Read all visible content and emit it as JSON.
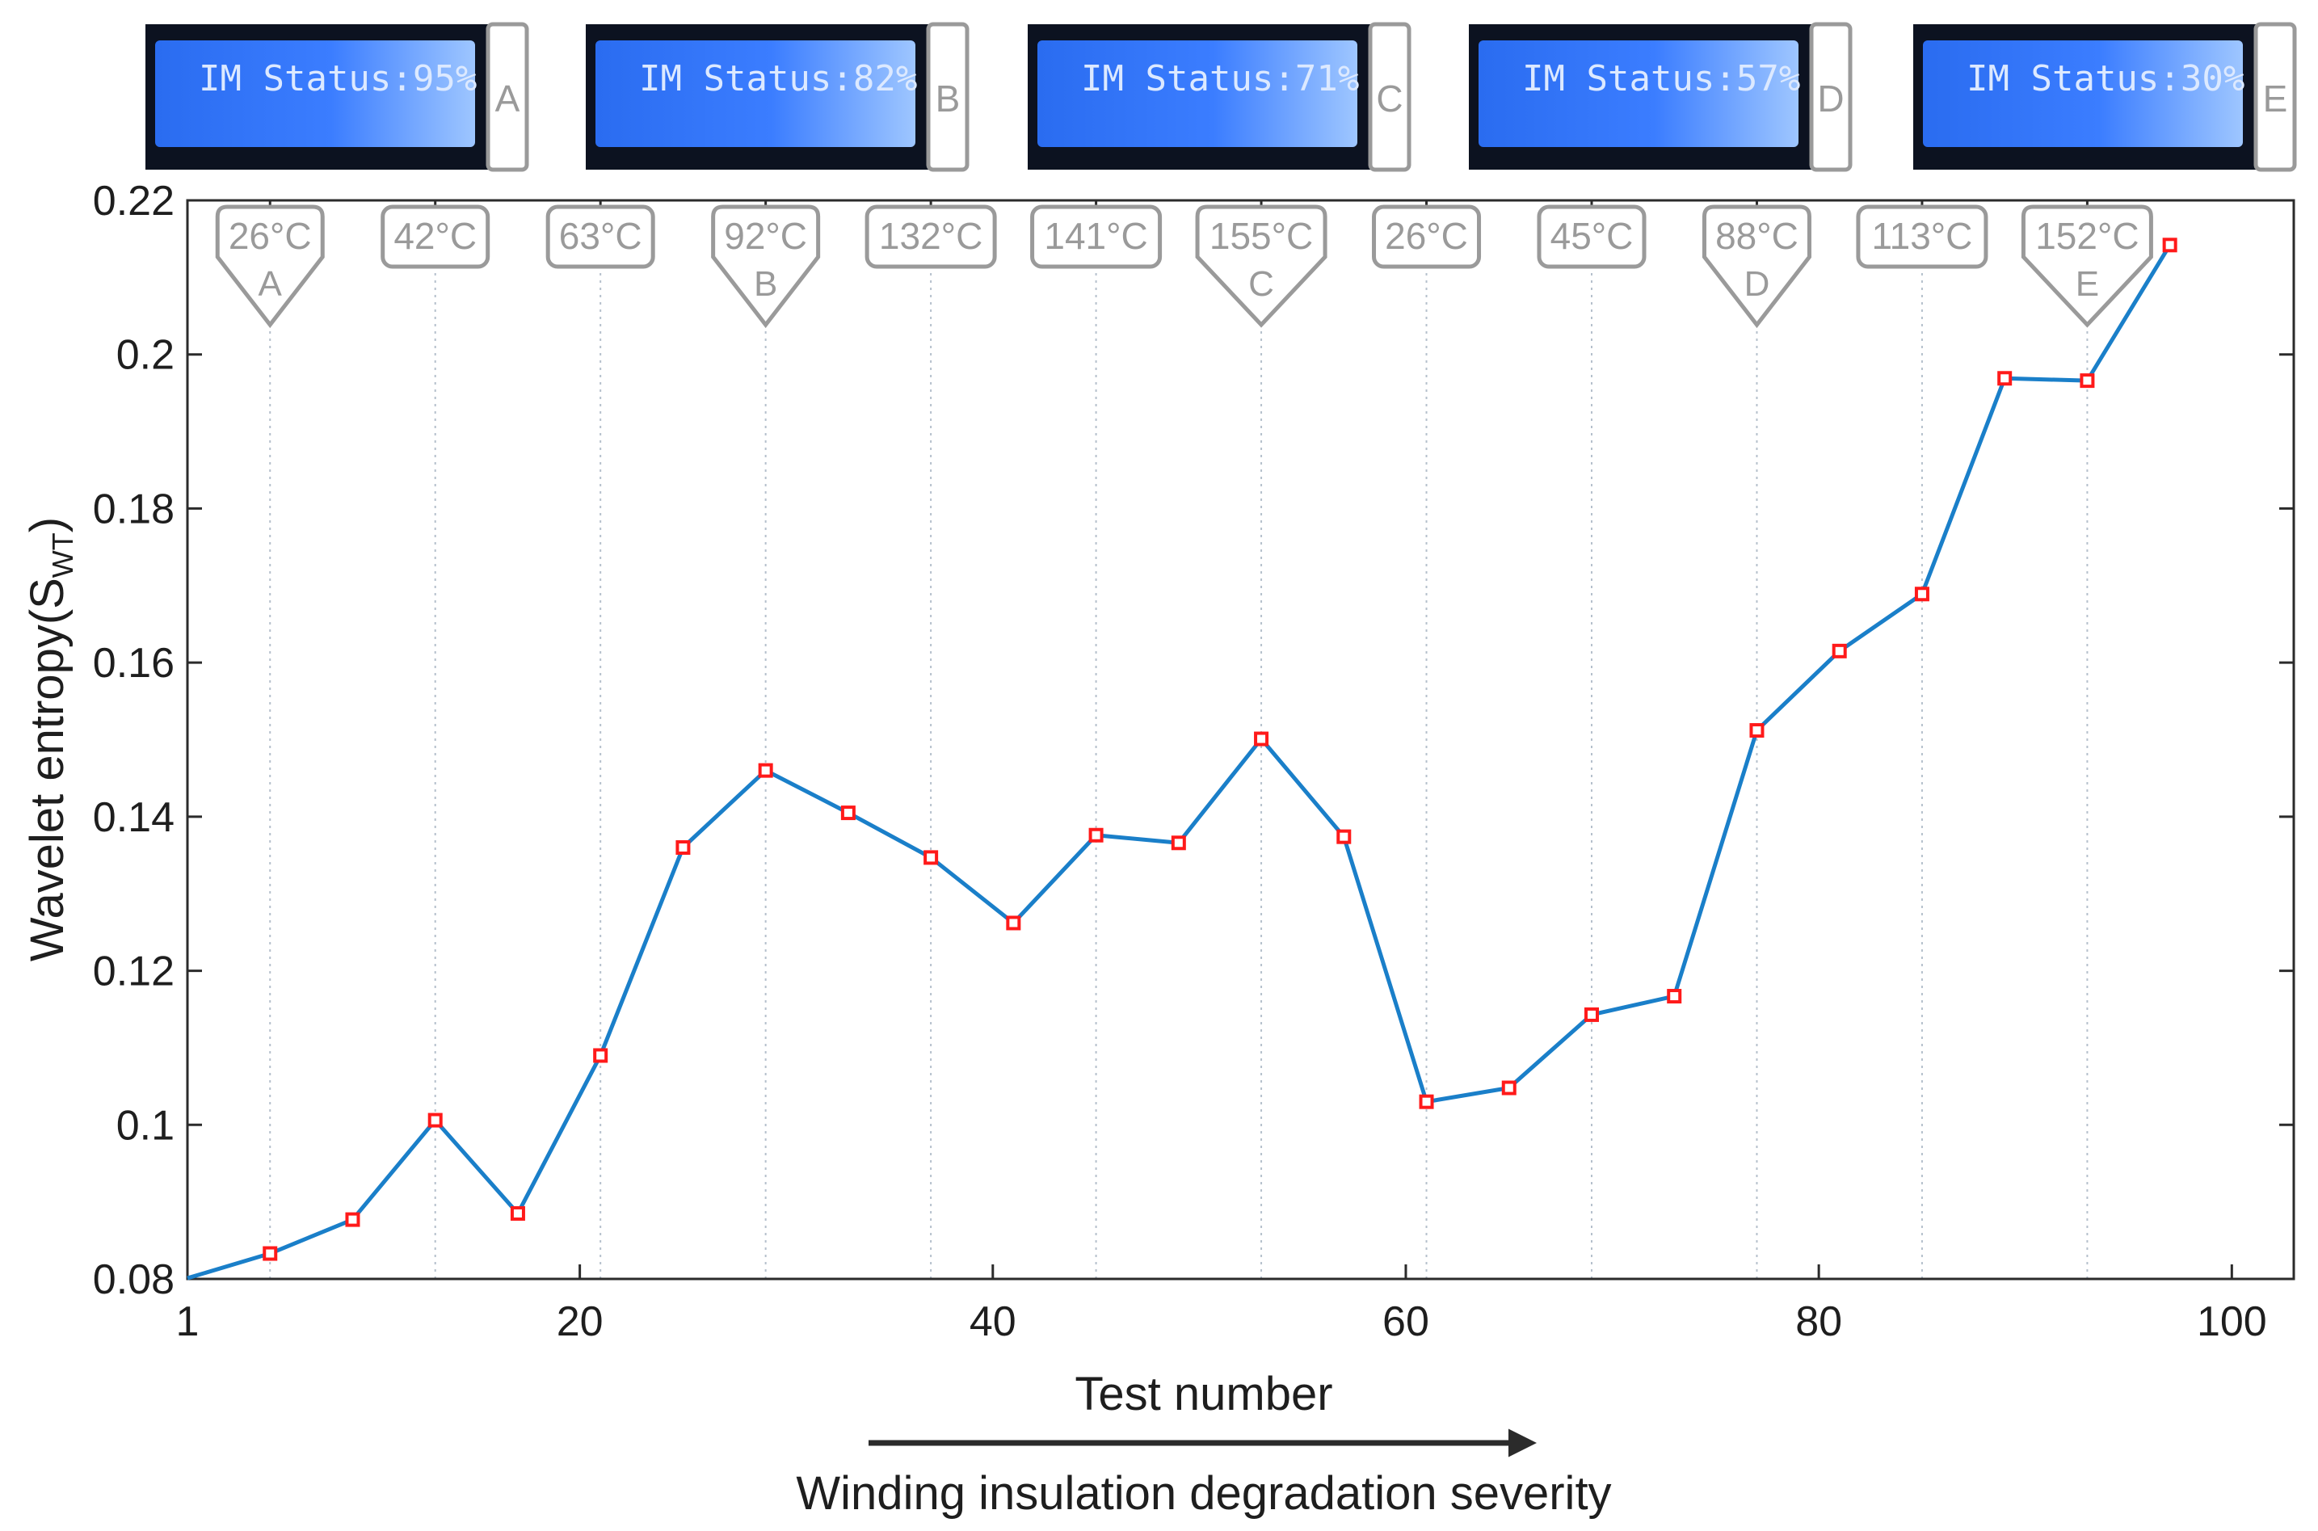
{
  "chart_data": {
    "type": "line",
    "title": "",
    "xlabel": "Test number",
    "ylabel_main": "Wavelet entropy(S",
    "ylabel_sub": "WT",
    "ylabel_close": ")",
    "xlim": [
      1,
      103
    ],
    "ylim": [
      0.08,
      0.22
    ],
    "x_ticks": [
      1,
      20,
      40,
      60,
      80,
      100
    ],
    "y_ticks": [
      0.08,
      0.1,
      0.12,
      0.14,
      0.16,
      0.18,
      0.2,
      0.22
    ],
    "y_tick_labels": [
      "0.08",
      "0.1",
      "0.12",
      "0.14",
      "0.16",
      "0.18",
      "0.2",
      "0.22"
    ],
    "line_color": "#1a7fc9",
    "marker_color": "#ff1a1a",
    "series": [
      {
        "name": "Wavelet entropy",
        "x": [
          1,
          5,
          9,
          13,
          17,
          21,
          25,
          29,
          33,
          37,
          41,
          45,
          49,
          53,
          57,
          61,
          65,
          69,
          73,
          77,
          81,
          85,
          89,
          93,
          97
        ],
        "y": [
          0.0801,
          0.0833,
          0.0877,
          0.1006,
          0.0885,
          0.109,
          0.136,
          0.146,
          0.1405,
          0.1347,
          0.1262,
          0.1376,
          0.1366,
          0.1501,
          0.1374,
          0.103,
          0.1048,
          0.1143,
          0.1167,
          0.1512,
          0.1615,
          0.1689,
          0.1969,
          0.1966,
          0.2142
        ],
        "marker_x": [
          5,
          9,
          13,
          17,
          21,
          25,
          29,
          33,
          37,
          41,
          45,
          49,
          53,
          57,
          61,
          65,
          69,
          73,
          77,
          81,
          85,
          89,
          93,
          97
        ]
      }
    ],
    "temperature_annotations": [
      {
        "x": 5,
        "label": "26°C",
        "stage": "A"
      },
      {
        "x": 13,
        "label": "42°C",
        "stage": ""
      },
      {
        "x": 21,
        "label": "63°C",
        "stage": ""
      },
      {
        "x": 29,
        "label": "92°C",
        "stage": "B"
      },
      {
        "x": 37,
        "label": "132°C",
        "stage": ""
      },
      {
        "x": 45,
        "label": "141°C",
        "stage": ""
      },
      {
        "x": 53,
        "label": "155°C",
        "stage": "C"
      },
      {
        "x": 61,
        "label": "26°C",
        "stage": ""
      },
      {
        "x": 69,
        "label": "45°C",
        "stage": ""
      },
      {
        "x": 77,
        "label": "88°C",
        "stage": "D"
      },
      {
        "x": 85,
        "label": "113°C",
        "stage": ""
      },
      {
        "x": 93,
        "label": "152°C",
        "stage": "E"
      }
    ],
    "lcd_panels": [
      {
        "text": "IM Status:95%",
        "letter": "A"
      },
      {
        "text": "IM Status:82%",
        "letter": "B"
      },
      {
        "text": "IM Status:71%",
        "letter": "C"
      },
      {
        "text": "IM Status:57%",
        "letter": "D"
      },
      {
        "text": "IM Status:30%",
        "letter": "E"
      }
    ],
    "arrow_label": "Winding insulation degradation severity"
  }
}
